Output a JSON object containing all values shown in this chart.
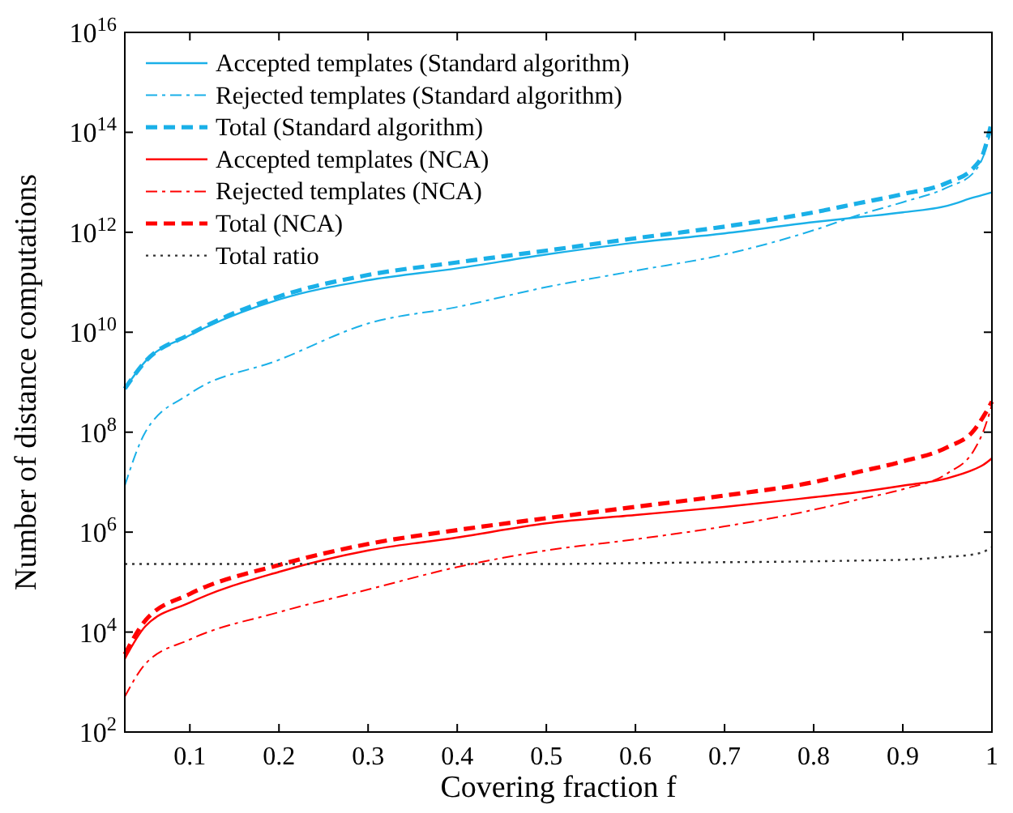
{
  "chart_data": {
    "type": "line",
    "xlabel": "Covering fraction f",
    "ylabel": "Number of distance computations",
    "log": "y",
    "grid": false,
    "legend": "top left",
    "x": [
      0.027,
      0.05,
      0.1,
      0.2,
      0.3,
      0.4,
      0.5,
      0.6,
      0.7,
      0.8,
      0.85,
      0.9,
      0.95,
      0.98,
      0.99,
      1.0
    ],
    "xlim": [
      0.027,
      1
    ],
    "xticks": [
      0.1,
      0.2,
      0.3,
      0.4,
      0.5,
      0.6,
      0.7,
      0.8,
      0.9,
      1
    ],
    "ylim": [
      100.0,
      1e+16
    ],
    "yticks": [
      {
        "value": 100.0,
        "label": "10$^{2}$"
      },
      {
        "value": 10000.0,
        "label": "10$^{4}$"
      },
      {
        "value": 1000000.0,
        "label": "10$^{6}$"
      },
      {
        "value": 100000000.0,
        "label": "10$^{8}$"
      },
      {
        "value": 10000000000.0,
        "label": "10$^{10}$"
      },
      {
        "value": 1000000000000.0,
        "label": "10$^{12}$"
      },
      {
        "value": 100000000000000.0,
        "label": "10$^{14}$"
      },
      {
        "value": 1e+16,
        "label": "10$^{16}$"
      }
    ],
    "series": [
      {
        "name": "Accepted templates (Standard algorithm)",
        "color": "#1ab0e8",
        "line_style": "solid",
        "values": [
          740000000.0,
          2600000000.0,
          8700000000.0,
          45000000000.0,
          110000000000.0,
          190000000000.0,
          360000000000.0,
          620000000000.0,
          950000000000.0,
          1600000000000.0,
          2000000000000.0,
          2500000000000.0,
          3400000000000.0,
          5000000000000.0,
          5600000000000.0,
          6300000000000.0
        ]
      },
      {
        "name": "Rejected templates (Standard algorithm)",
        "color": "#1ab0e8",
        "line_style": "dashdot",
        "values": [
          8500000.0,
          100000000.0,
          590000000.0,
          2800000000.0,
          15000000000.0,
          32000000000.0,
          80000000000.0,
          170000000000.0,
          360000000000.0,
          1100000000000.0,
          2200000000000.0,
          4000000000000.0,
          7900000000000.0,
          16000000000000.0,
          32000000000000.0,
          130000000000000.0
        ]
      },
      {
        "name": "Total (Standard algorithm)",
        "color": "#1ab0e8",
        "line_style": "dashed",
        "values": [
          740000000.0,
          2600000000.0,
          9100000000.0,
          52000000000.0,
          140000000000.0,
          250000000000.0,
          430000000000.0,
          760000000000.0,
          1300000000000.0,
          2500000000000.0,
          3800000000000.0,
          5800000000000.0,
          9800000000000.0,
          20000000000000.0,
          37000000000000.0,
          170000000000000.0
        ]
      },
      {
        "name": "Accepted templates (NCA)",
        "color": "#ff0000",
        "line_style": "solid",
        "values": [
          2900.0,
          13000.0,
          39000.0,
          160000.0,
          430000.0,
          780000.0,
          1500000.0,
          2200000.0,
          3200000.0,
          5000000.0,
          6300000.0,
          8500000.0,
          12000000.0,
          18000000.0,
          22000000.0,
          30000000.0
        ]
      },
      {
        "name": "Rejected templates (NCA)",
        "color": "#ff0000",
        "line_style": "dashdot",
        "values": [
          510.0,
          2300.0,
          7100.0,
          25000.0,
          71000.0,
          200000.0,
          430000.0,
          720000.0,
          1300000.0,
          2800000.0,
          4500000.0,
          7200000.0,
          15000000.0,
          44000000.0,
          100000000.0,
          350000000.0
        ]
      },
      {
        "name": "Total (NCA)",
        "color": "#ff0000",
        "line_style": "dashed",
        "values": [
          3600.0,
          17000.0,
          58000.0,
          220000.0,
          580000.0,
          1100000.0,
          1900000.0,
          3200000.0,
          5400000.0,
          10000000.0,
          16000000.0,
          26000000.0,
          50000000.0,
          110000000.0,
          200000000.0,
          410000000.0
        ]
      },
      {
        "name": "Total ratio",
        "color": "#333333",
        "line_style": "dotted",
        "values": [
          230000.0,
          230000.0,
          230000.0,
          230000.0,
          230000.0,
          230000.0,
          230000.0,
          240000.0,
          250000.0,
          260000.0,
          270000.0,
          280000.0,
          320000.0,
          360000.0,
          400000.0,
          500000.0
        ]
      }
    ]
  }
}
